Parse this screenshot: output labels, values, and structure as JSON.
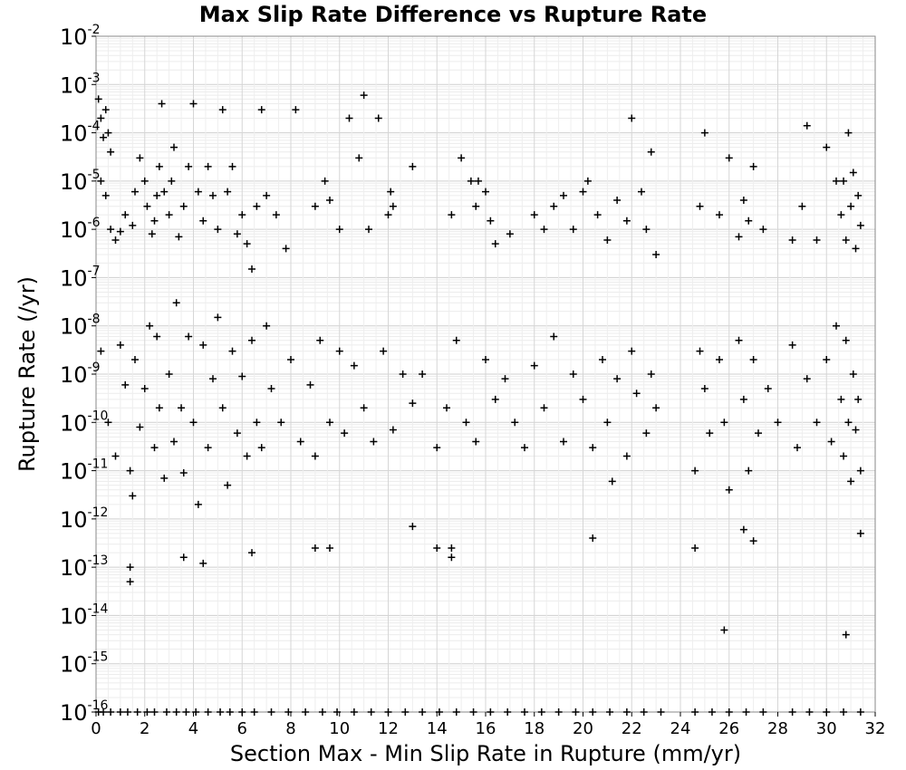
{
  "chart_data": {
    "type": "scatter",
    "title": "Max Slip Rate Difference vs Rupture Rate",
    "xlabel": "Section Max - Min Slip Rate in Rupture (mm/yr)",
    "ylabel": "Rupture Rate (/yr)",
    "xlim": [
      0,
      32
    ],
    "ylim": [
      1e-16,
      0.01
    ],
    "yscale": "log",
    "x_ticks": [
      "0",
      "2",
      "4",
      "6",
      "8",
      "10",
      "12",
      "14",
      "16",
      "18",
      "20",
      "22",
      "24",
      "26",
      "28",
      "30",
      "32"
    ],
    "y_ticks": [
      {
        "base": "10",
        "exp": "-2"
      },
      {
        "base": "10",
        "exp": "-3"
      },
      {
        "base": "10",
        "exp": "-4"
      },
      {
        "base": "10",
        "exp": "-5"
      },
      {
        "base": "10",
        "exp": "-6"
      },
      {
        "base": "10",
        "exp": "-7"
      },
      {
        "base": "10",
        "exp": "-8"
      },
      {
        "base": "10",
        "exp": "-9"
      },
      {
        "base": "10",
        "exp": "-10"
      },
      {
        "base": "10",
        "exp": "-11"
      },
      {
        "base": "10",
        "exp": "-12"
      },
      {
        "base": "10",
        "exp": "-13"
      },
      {
        "base": "10",
        "exp": "-14"
      },
      {
        "base": "10",
        "exp": "-15"
      },
      {
        "base": "10",
        "exp": "-16"
      }
    ],
    "grid": true,
    "marker": "+",
    "marker_color": "#000000",
    "series": [
      {
        "points": [
          [
            0.1,
            0.0005
          ],
          [
            0.2,
            0.0002
          ],
          [
            0.3,
            8e-05
          ],
          [
            0.4,
            0.0003
          ],
          [
            0.5,
            0.0001
          ],
          [
            0.6,
            4e-05
          ],
          [
            0.2,
            1e-05
          ],
          [
            0.4,
            5e-06
          ],
          [
            0.6,
            1e-06
          ],
          [
            0.8,
            6e-07
          ],
          [
            1.0,
            9e-07
          ],
          [
            1.2,
            2e-06
          ],
          [
            1.5,
            1.2e-06
          ],
          [
            1.6,
            6e-06
          ],
          [
            1.8,
            3e-05
          ],
          [
            2.0,
            1e-05
          ],
          [
            2.1,
            3e-06
          ],
          [
            2.3,
            8e-07
          ],
          [
            2.4,
            1.5e-06
          ],
          [
            2.5,
            5e-06
          ],
          [
            2.6,
            2e-05
          ],
          [
            2.7,
            0.0004
          ],
          [
            2.8,
            6e-06
          ],
          [
            3.0,
            2e-06
          ],
          [
            3.1,
            1e-05
          ],
          [
            3.2,
            5e-05
          ],
          [
            3.4,
            7e-07
          ],
          [
            3.6,
            3e-06
          ],
          [
            3.8,
            2e-05
          ],
          [
            4.0,
            0.0004
          ],
          [
            4.2,
            6e-06
          ],
          [
            4.4,
            1.5e-06
          ],
          [
            4.6,
            2e-05
          ],
          [
            4.8,
            5e-06
          ],
          [
            5.0,
            1e-06
          ],
          [
            5.2,
            0.0003
          ],
          [
            5.4,
            6e-06
          ],
          [
            5.6,
            2e-05
          ],
          [
            5.8,
            8e-07
          ],
          [
            6.0,
            2e-06
          ],
          [
            6.2,
            5e-07
          ],
          [
            6.4,
            1.5e-07
          ],
          [
            6.6,
            3e-06
          ],
          [
            6.8,
            0.0003
          ],
          [
            7.0,
            5e-06
          ],
          [
            7.4,
            2e-06
          ],
          [
            7.8,
            4e-07
          ],
          [
            8.2,
            0.0003
          ],
          [
            9.0,
            3e-06
          ],
          [
            9.4,
            1e-05
          ],
          [
            9.6,
            4e-06
          ],
          [
            10.0,
            1e-06
          ],
          [
            10.4,
            0.0002
          ],
          [
            10.8,
            3e-05
          ],
          [
            11.0,
            0.0006
          ],
          [
            11.2,
            1e-06
          ],
          [
            11.6,
            0.0002
          ],
          [
            12.0,
            2e-06
          ],
          [
            12.1,
            6e-06
          ],
          [
            12.2,
            3e-06
          ],
          [
            13.0,
            2e-05
          ],
          [
            14.6,
            2e-06
          ],
          [
            15.0,
            3e-05
          ],
          [
            15.4,
            1e-05
          ],
          [
            15.6,
            3e-06
          ],
          [
            15.7,
            1e-05
          ],
          [
            16.0,
            6e-06
          ],
          [
            16.2,
            1.5e-06
          ],
          [
            16.4,
            5e-07
          ],
          [
            17.0,
            8e-07
          ],
          [
            18.0,
            2e-06
          ],
          [
            18.4,
            1e-06
          ],
          [
            18.8,
            3e-06
          ],
          [
            19.2,
            5e-06
          ],
          [
            19.6,
            1e-06
          ],
          [
            20.0,
            6e-06
          ],
          [
            20.2,
            1e-05
          ],
          [
            20.6,
            2e-06
          ],
          [
            21.0,
            6e-07
          ],
          [
            21.4,
            4e-06
          ],
          [
            21.8,
            1.5e-06
          ],
          [
            22.0,
            0.0002
          ],
          [
            22.4,
            6e-06
          ],
          [
            22.6,
            1e-06
          ],
          [
            22.8,
            4e-05
          ],
          [
            23.0,
            3e-07
          ],
          [
            24.8,
            3e-06
          ],
          [
            25.0,
            0.0001
          ],
          [
            25.6,
            2e-06
          ],
          [
            26.0,
            3e-05
          ],
          [
            26.4,
            7e-07
          ],
          [
            26.6,
            4e-06
          ],
          [
            26.8,
            1.5e-06
          ],
          [
            27.0,
            2e-05
          ],
          [
            27.4,
            1e-06
          ],
          [
            28.6,
            6e-07
          ],
          [
            29.0,
            3e-06
          ],
          [
            29.2,
            0.00014
          ],
          [
            29.6,
            6e-07
          ],
          [
            30.0,
            5e-05
          ],
          [
            30.4,
            1e-05
          ],
          [
            30.6,
            2e-06
          ],
          [
            30.7,
            1e-05
          ],
          [
            30.8,
            6e-07
          ],
          [
            30.9,
            0.0001
          ],
          [
            31.0,
            3e-06
          ],
          [
            31.1,
            1.5e-05
          ],
          [
            31.2,
            4e-07
          ],
          [
            31.3,
            5e-06
          ],
          [
            31.4,
            1.2e-06
          ],
          [
            0.2,
            3e-09
          ],
          [
            0.5,
            1e-10
          ],
          [
            0.8,
            2e-11
          ],
          [
            1.0,
            4e-09
          ],
          [
            1.2,
            6e-10
          ],
          [
            1.4,
            1e-11
          ],
          [
            1.5,
            3e-12
          ],
          [
            1.6,
            2e-09
          ],
          [
            1.8,
            8e-11
          ],
          [
            2.0,
            5e-10
          ],
          [
            2.2,
            1e-08
          ],
          [
            2.4,
            3e-11
          ],
          [
            2.5,
            6e-09
          ],
          [
            2.6,
            2e-10
          ],
          [
            2.8,
            7e-12
          ],
          [
            3.0,
            1e-09
          ],
          [
            3.2,
            4e-11
          ],
          [
            3.3,
            3e-08
          ],
          [
            3.5,
            2e-10
          ],
          [
            3.6,
            9e-12
          ],
          [
            3.8,
            6e-09
          ],
          [
            4.0,
            1e-10
          ],
          [
            4.2,
            2e-12
          ],
          [
            4.4,
            4e-09
          ],
          [
            4.6,
            3e-11
          ],
          [
            4.8,
            8e-10
          ],
          [
            5.0,
            1.5e-08
          ],
          [
            5.2,
            2e-10
          ],
          [
            5.4,
            5e-12
          ],
          [
            5.6,
            3e-09
          ],
          [
            5.8,
            6e-11
          ],
          [
            6.0,
            9e-10
          ],
          [
            6.2,
            2e-11
          ],
          [
            6.4,
            5e-09
          ],
          [
            6.6,
            1e-10
          ],
          [
            6.8,
            3e-11
          ],
          [
            7.0,
            1e-08
          ],
          [
            7.2,
            5e-10
          ],
          [
            7.6,
            1e-10
          ],
          [
            8.0,
            2e-09
          ],
          [
            8.4,
            4e-11
          ],
          [
            8.8,
            6e-10
          ],
          [
            9.0,
            2e-11
          ],
          [
            9.2,
            5e-09
          ],
          [
            9.6,
            1e-10
          ],
          [
            10.0,
            3e-09
          ],
          [
            10.2,
            6e-11
          ],
          [
            10.6,
            1.5e-09
          ],
          [
            11.0,
            2e-10
          ],
          [
            11.4,
            4e-11
          ],
          [
            11.8,
            3e-09
          ],
          [
            12.2,
            7e-11
          ],
          [
            12.6,
            1e-09
          ],
          [
            13.0,
            2.5e-10
          ],
          [
            13.4,
            1e-09
          ],
          [
            14.0,
            3e-11
          ],
          [
            14.4,
            2e-10
          ],
          [
            14.8,
            5e-09
          ],
          [
            15.2,
            1e-10
          ],
          [
            15.6,
            4e-11
          ],
          [
            16.0,
            2e-09
          ],
          [
            16.4,
            3e-10
          ],
          [
            16.8,
            8e-10
          ],
          [
            17.2,
            1e-10
          ],
          [
            17.6,
            3e-11
          ],
          [
            18.0,
            1.5e-09
          ],
          [
            18.4,
            2e-10
          ],
          [
            18.8,
            6e-09
          ],
          [
            19.2,
            4e-11
          ],
          [
            19.6,
            1e-09
          ],
          [
            20.0,
            3e-10
          ],
          [
            20.4,
            3e-11
          ],
          [
            20.8,
            2e-09
          ],
          [
            21.0,
            1e-10
          ],
          [
            21.2,
            6e-12
          ],
          [
            21.4,
            8e-10
          ],
          [
            21.8,
            2e-11
          ],
          [
            22.0,
            3e-09
          ],
          [
            22.2,
            4e-10
          ],
          [
            22.6,
            6e-11
          ],
          [
            22.8,
            1e-09
          ],
          [
            23.0,
            2e-10
          ],
          [
            24.6,
            1e-11
          ],
          [
            24.8,
            3e-09
          ],
          [
            25.0,
            5e-10
          ],
          [
            25.2,
            6e-11
          ],
          [
            25.6,
            2e-09
          ],
          [
            25.8,
            1e-10
          ],
          [
            26.0,
            4e-12
          ],
          [
            26.4,
            5e-09
          ],
          [
            26.6,
            3e-10
          ],
          [
            26.8,
            1e-11
          ],
          [
            27.0,
            2e-09
          ],
          [
            27.2,
            6e-11
          ],
          [
            27.6,
            5e-10
          ],
          [
            28.0,
            1e-10
          ],
          [
            28.6,
            4e-09
          ],
          [
            28.8,
            3e-11
          ],
          [
            29.2,
            8e-10
          ],
          [
            29.6,
            1e-10
          ],
          [
            30.0,
            2e-09
          ],
          [
            30.2,
            4e-11
          ],
          [
            30.4,
            1e-08
          ],
          [
            30.6,
            3e-10
          ],
          [
            30.7,
            2e-11
          ],
          [
            30.8,
            5e-09
          ],
          [
            30.9,
            1e-10
          ],
          [
            31.0,
            6e-12
          ],
          [
            31.1,
            1e-09
          ],
          [
            31.2,
            7e-11
          ],
          [
            31.3,
            3e-10
          ],
          [
            31.4,
            1e-11
          ],
          [
            1.4,
            1e-13
          ],
          [
            1.4,
            5e-14
          ],
          [
            4.4,
            1.2e-13
          ],
          [
            3.6,
            1.6e-13
          ],
          [
            6.4,
            2e-13
          ],
          [
            9.0,
            2.5e-13
          ],
          [
            9.6,
            2.5e-13
          ],
          [
            13.0,
            7e-13
          ],
          [
            14.0,
            2.5e-13
          ],
          [
            14.6,
            1.6e-13
          ],
          [
            14.6,
            2.5e-13
          ],
          [
            20.4,
            4e-13
          ],
          [
            25.8,
            5e-15
          ],
          [
            30.8,
            4e-15
          ],
          [
            26.6,
            6e-13
          ],
          [
            27.0,
            3.5e-13
          ],
          [
            31.4,
            5e-13
          ],
          [
            24.6,
            2.5e-13
          ]
        ],
        "baseline_x": [
          0.1,
          0.3,
          0.6,
          1.0,
          1.3,
          1.7,
          2.1,
          2.4,
          2.9,
          3.3,
          3.7,
          4.1,
          4.6,
          5.1,
          5.5,
          6.0,
          6.5,
          7.2,
          7.9,
          8.6,
          9.3,
          9.9,
          10.6,
          11.3,
          12.0,
          12.7,
          13.4,
          14.1,
          14.8,
          15.5,
          16.2,
          16.9,
          17.6,
          18.3,
          19.0,
          19.7,
          20.4,
          21.1,
          21.8,
          22.5,
          23.2,
          24.6,
          25.3,
          26.0,
          26.7,
          27.4,
          28.6,
          29.3,
          30.0,
          30.7,
          31.4
        ],
        "baseline_y": 1e-16
      }
    ]
  }
}
